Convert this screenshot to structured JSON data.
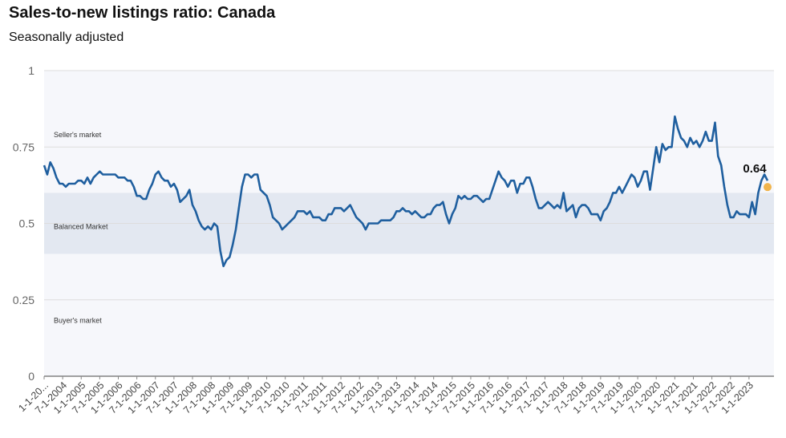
{
  "title": "Sales-to-new listings ratio: Canada",
  "subtitle": "Seasonally adjusted",
  "colors": {
    "line": "#1f5f9f",
    "balanced_band": "#e3e8f1",
    "plot_background": "#f6f7fb",
    "last_point": "#f0b44c",
    "gridline": "#dddddd"
  },
  "chart_data": {
    "type": "line",
    "title": "Sales-to-new listings ratio: Canada",
    "subtitle": "Seasonally adjusted",
    "xlabel": "",
    "ylabel": "",
    "ylim": [
      0,
      1
    ],
    "y_ticks": [
      "0",
      "0.25",
      "0.5",
      "0.75",
      "1"
    ],
    "x_ticks": [
      "1-1-20...",
      "7-1-2004",
      "1-1-2005",
      "7-1-2005",
      "1-1-2006",
      "7-1-2006",
      "1-1-2007",
      "7-1-2007",
      "1-1-2008",
      "7-1-2008",
      "1-1-2009",
      "7-1-2009",
      "1-1-2010",
      "7-1-2010",
      "1-1-2011",
      "7-1-2011",
      "1-1-2012",
      "7-1-2012",
      "1-1-2013",
      "7-1-2013",
      "1-1-2014",
      "7-1-2014",
      "1-1-2015",
      "7-1-2015",
      "1-1-2016",
      "7-1-2016",
      "1-1-2017",
      "7-1-2017",
      "1-1-2018",
      "7-1-2018",
      "1-1-2019",
      "7-1-2019",
      "1-1-2020",
      "7-1-2020",
      "1-1-2021",
      "7-1-2021",
      "1-1-2022",
      "7-1-2022",
      "1-1-2023"
    ],
    "grid": true,
    "bands": [
      {
        "label": "Seller's market",
        "from": 0.6,
        "to": 1.0
      },
      {
        "label": "Balanced Market",
        "from": 0.4,
        "to": 0.6
      },
      {
        "label": "Buyer's market",
        "from": 0.0,
        "to": 0.4
      }
    ],
    "annotation": {
      "text": "0.64",
      "value": 0.64
    },
    "series": [
      {
        "points": [
          [
            "1-1-2004",
            0.69
          ],
          [
            "2-1-2004",
            0.66
          ],
          [
            "3-1-2004",
            0.7
          ],
          [
            "4-1-2004",
            0.68
          ],
          [
            "5-1-2004",
            0.65
          ],
          [
            "6-1-2004",
            0.63
          ],
          [
            "7-1-2004",
            0.63
          ],
          [
            "8-1-2004",
            0.62
          ],
          [
            "9-1-2004",
            0.63
          ],
          [
            "10-1-2004",
            0.63
          ],
          [
            "11-1-2004",
            0.63
          ],
          [
            "12-1-2004",
            0.64
          ],
          [
            "1-1-2005",
            0.64
          ],
          [
            "2-1-2005",
            0.63
          ],
          [
            "3-1-2005",
            0.65
          ],
          [
            "4-1-2005",
            0.63
          ],
          [
            "5-1-2005",
            0.65
          ],
          [
            "6-1-2005",
            0.66
          ],
          [
            "7-1-2005",
            0.67
          ],
          [
            "8-1-2005",
            0.66
          ],
          [
            "9-1-2005",
            0.66
          ],
          [
            "10-1-2005",
            0.66
          ],
          [
            "11-1-2005",
            0.66
          ],
          [
            "12-1-2005",
            0.66
          ],
          [
            "1-1-2006",
            0.65
          ],
          [
            "2-1-2006",
            0.65
          ],
          [
            "3-1-2006",
            0.65
          ],
          [
            "4-1-2006",
            0.64
          ],
          [
            "5-1-2006",
            0.64
          ],
          [
            "6-1-2006",
            0.62
          ],
          [
            "7-1-2006",
            0.59
          ],
          [
            "8-1-2006",
            0.59
          ],
          [
            "9-1-2006",
            0.58
          ],
          [
            "10-1-2006",
            0.58
          ],
          [
            "11-1-2006",
            0.61
          ],
          [
            "12-1-2006",
            0.63
          ],
          [
            "1-1-2007",
            0.66
          ],
          [
            "2-1-2007",
            0.67
          ],
          [
            "3-1-2007",
            0.65
          ],
          [
            "4-1-2007",
            0.64
          ],
          [
            "5-1-2007",
            0.64
          ],
          [
            "6-1-2007",
            0.62
          ],
          [
            "7-1-2007",
            0.63
          ],
          [
            "8-1-2007",
            0.61
          ],
          [
            "9-1-2007",
            0.57
          ],
          [
            "10-1-2007",
            0.58
          ],
          [
            "11-1-2007",
            0.59
          ],
          [
            "12-1-2007",
            0.61
          ],
          [
            "1-1-2008",
            0.56
          ],
          [
            "2-1-2008",
            0.54
          ],
          [
            "3-1-2008",
            0.51
          ],
          [
            "4-1-2008",
            0.49
          ],
          [
            "5-1-2008",
            0.48
          ],
          [
            "6-1-2008",
            0.49
          ],
          [
            "7-1-2008",
            0.48
          ],
          [
            "8-1-2008",
            0.5
          ],
          [
            "9-1-2008",
            0.49
          ],
          [
            "10-1-2008",
            0.41
          ],
          [
            "11-1-2008",
            0.36
          ],
          [
            "12-1-2008",
            0.38
          ],
          [
            "1-1-2009",
            0.39
          ],
          [
            "2-1-2009",
            0.43
          ],
          [
            "3-1-2009",
            0.48
          ],
          [
            "4-1-2009",
            0.55
          ],
          [
            "5-1-2009",
            0.62
          ],
          [
            "6-1-2009",
            0.66
          ],
          [
            "7-1-2009",
            0.66
          ],
          [
            "8-1-2009",
            0.65
          ],
          [
            "9-1-2009",
            0.66
          ],
          [
            "10-1-2009",
            0.66
          ],
          [
            "11-1-2009",
            0.61
          ],
          [
            "12-1-2009",
            0.6
          ],
          [
            "1-1-2010",
            0.59
          ],
          [
            "2-1-2010",
            0.56
          ],
          [
            "3-1-2010",
            0.52
          ],
          [
            "4-1-2010",
            0.51
          ],
          [
            "5-1-2010",
            0.5
          ],
          [
            "6-1-2010",
            0.48
          ],
          [
            "7-1-2010",
            0.49
          ],
          [
            "8-1-2010",
            0.5
          ],
          [
            "9-1-2010",
            0.51
          ],
          [
            "10-1-2010",
            0.52
          ],
          [
            "11-1-2010",
            0.54
          ],
          [
            "12-1-2010",
            0.54
          ],
          [
            "1-1-2011",
            0.54
          ],
          [
            "2-1-2011",
            0.53
          ],
          [
            "3-1-2011",
            0.54
          ],
          [
            "4-1-2011",
            0.52
          ],
          [
            "5-1-2011",
            0.52
          ],
          [
            "6-1-2011",
            0.52
          ],
          [
            "7-1-2011",
            0.51
          ],
          [
            "8-1-2011",
            0.51
          ],
          [
            "9-1-2011",
            0.53
          ],
          [
            "10-1-2011",
            0.53
          ],
          [
            "11-1-2011",
            0.55
          ],
          [
            "12-1-2011",
            0.55
          ],
          [
            "1-1-2012",
            0.55
          ],
          [
            "2-1-2012",
            0.54
          ],
          [
            "3-1-2012",
            0.55
          ],
          [
            "4-1-2012",
            0.56
          ],
          [
            "5-1-2012",
            0.54
          ],
          [
            "6-1-2012",
            0.52
          ],
          [
            "7-1-2012",
            0.51
          ],
          [
            "8-1-2012",
            0.5
          ],
          [
            "9-1-2012",
            0.48
          ],
          [
            "10-1-2012",
            0.5
          ],
          [
            "11-1-2012",
            0.5
          ],
          [
            "12-1-2012",
            0.5
          ],
          [
            "1-1-2013",
            0.5
          ],
          [
            "2-1-2013",
            0.51
          ],
          [
            "3-1-2013",
            0.51
          ],
          [
            "4-1-2013",
            0.51
          ],
          [
            "5-1-2013",
            0.51
          ],
          [
            "6-1-2013",
            0.52
          ],
          [
            "7-1-2013",
            0.54
          ],
          [
            "8-1-2013",
            0.54
          ],
          [
            "9-1-2013",
            0.55
          ],
          [
            "10-1-2013",
            0.54
          ],
          [
            "11-1-2013",
            0.54
          ],
          [
            "12-1-2013",
            0.53
          ],
          [
            "1-1-2014",
            0.54
          ],
          [
            "2-1-2014",
            0.53
          ],
          [
            "3-1-2014",
            0.52
          ],
          [
            "4-1-2014",
            0.52
          ],
          [
            "5-1-2014",
            0.53
          ],
          [
            "6-1-2014",
            0.53
          ],
          [
            "7-1-2014",
            0.55
          ],
          [
            "8-1-2014",
            0.56
          ],
          [
            "9-1-2014",
            0.56
          ],
          [
            "10-1-2014",
            0.57
          ],
          [
            "11-1-2014",
            0.53
          ],
          [
            "12-1-2014",
            0.5
          ],
          [
            "1-1-2015",
            0.53
          ],
          [
            "2-1-2015",
            0.55
          ],
          [
            "3-1-2015",
            0.59
          ],
          [
            "4-1-2015",
            0.58
          ],
          [
            "5-1-2015",
            0.59
          ],
          [
            "6-1-2015",
            0.58
          ],
          [
            "7-1-2015",
            0.58
          ],
          [
            "8-1-2015",
            0.59
          ],
          [
            "9-1-2015",
            0.59
          ],
          [
            "10-1-2015",
            0.58
          ],
          [
            "11-1-2015",
            0.57
          ],
          [
            "12-1-2015",
            0.58
          ],
          [
            "1-1-2016",
            0.58
          ],
          [
            "2-1-2016",
            0.61
          ],
          [
            "3-1-2016",
            0.64
          ],
          [
            "4-1-2016",
            0.67
          ],
          [
            "5-1-2016",
            0.65
          ],
          [
            "6-1-2016",
            0.64
          ],
          [
            "7-1-2016",
            0.62
          ],
          [
            "8-1-2016",
            0.64
          ],
          [
            "9-1-2016",
            0.64
          ],
          [
            "10-1-2016",
            0.6
          ],
          [
            "11-1-2016",
            0.63
          ],
          [
            "12-1-2016",
            0.63
          ],
          [
            "1-1-2017",
            0.65
          ],
          [
            "2-1-2017",
            0.65
          ],
          [
            "3-1-2017",
            0.62
          ],
          [
            "4-1-2017",
            0.58
          ],
          [
            "5-1-2017",
            0.55
          ],
          [
            "6-1-2017",
            0.55
          ],
          [
            "7-1-2017",
            0.56
          ],
          [
            "8-1-2017",
            0.57
          ],
          [
            "9-1-2017",
            0.56
          ],
          [
            "10-1-2017",
            0.55
          ],
          [
            "11-1-2017",
            0.56
          ],
          [
            "12-1-2017",
            0.55
          ],
          [
            "1-1-2018",
            0.6
          ],
          [
            "2-1-2018",
            0.54
          ],
          [
            "3-1-2018",
            0.55
          ],
          [
            "4-1-2018",
            0.56
          ],
          [
            "5-1-2018",
            0.52
          ],
          [
            "6-1-2018",
            0.55
          ],
          [
            "7-1-2018",
            0.56
          ],
          [
            "8-1-2018",
            0.56
          ],
          [
            "9-1-2018",
            0.55
          ],
          [
            "10-1-2018",
            0.53
          ],
          [
            "11-1-2018",
            0.53
          ],
          [
            "12-1-2018",
            0.53
          ],
          [
            "1-1-2019",
            0.51
          ],
          [
            "2-1-2019",
            0.54
          ],
          [
            "3-1-2019",
            0.55
          ],
          [
            "4-1-2019",
            0.57
          ],
          [
            "5-1-2019",
            0.6
          ],
          [
            "6-1-2019",
            0.6
          ],
          [
            "7-1-2019",
            0.62
          ],
          [
            "8-1-2019",
            0.6
          ],
          [
            "9-1-2019",
            0.62
          ],
          [
            "10-1-2019",
            0.64
          ],
          [
            "11-1-2019",
            0.66
          ],
          [
            "12-1-2019",
            0.65
          ],
          [
            "1-1-2020",
            0.62
          ],
          [
            "2-1-2020",
            0.64
          ],
          [
            "3-1-2020",
            0.67
          ],
          [
            "4-1-2020",
            0.67
          ],
          [
            "5-1-2020",
            0.61
          ],
          [
            "6-1-2020",
            0.68
          ],
          [
            "7-1-2020",
            0.75
          ],
          [
            "8-1-2020",
            0.7
          ],
          [
            "9-1-2020",
            0.76
          ],
          [
            "10-1-2020",
            0.74
          ],
          [
            "11-1-2020",
            0.75
          ],
          [
            "12-1-2020",
            0.75
          ],
          [
            "1-1-2021",
            0.85
          ],
          [
            "2-1-2021",
            0.81
          ],
          [
            "3-1-2021",
            0.78
          ],
          [
            "4-1-2021",
            0.77
          ],
          [
            "5-1-2021",
            0.75
          ],
          [
            "6-1-2021",
            0.78
          ],
          [
            "7-1-2021",
            0.76
          ],
          [
            "8-1-2021",
            0.77
          ],
          [
            "9-1-2021",
            0.75
          ],
          [
            "10-1-2021",
            0.77
          ],
          [
            "11-1-2021",
            0.8
          ],
          [
            "12-1-2021",
            0.77
          ],
          [
            "1-1-2022",
            0.77
          ],
          [
            "2-1-2022",
            0.83
          ],
          [
            "3-1-2022",
            0.72
          ],
          [
            "4-1-2022",
            0.69
          ],
          [
            "5-1-2022",
            0.62
          ],
          [
            "6-1-2022",
            0.56
          ],
          [
            "7-1-2022",
            0.52
          ],
          [
            "8-1-2022",
            0.52
          ],
          [
            "9-1-2022",
            0.54
          ],
          [
            "10-1-2022",
            0.53
          ],
          [
            "11-1-2022",
            0.53
          ],
          [
            "12-1-2022",
            0.53
          ],
          [
            "1-1-2023",
            0.52
          ],
          [
            "2-1-2023",
            0.57
          ],
          [
            "3-1-2023",
            0.53
          ],
          [
            "4-1-2023",
            0.6
          ],
          [
            "5-1-2023",
            0.64
          ],
          [
            "6-1-2023",
            0.66
          ],
          [
            "7-1-2023",
            0.64
          ]
        ]
      }
    ]
  }
}
